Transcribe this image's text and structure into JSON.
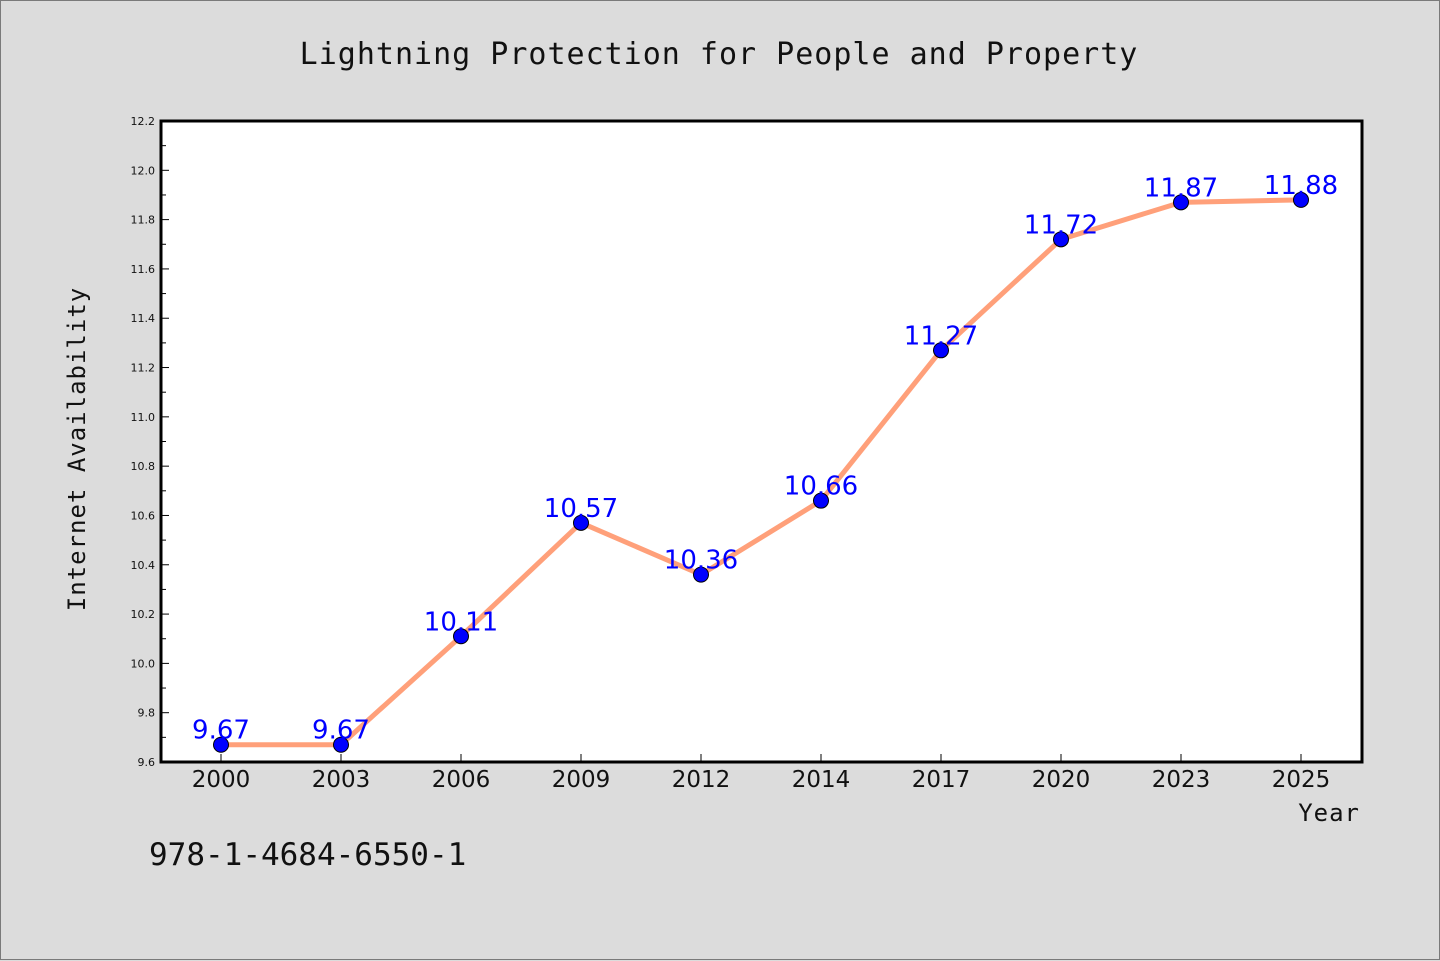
{
  "colors": {
    "background": "#dcdcdc",
    "plot_area": "#ffffff",
    "line": "#ffa07a",
    "marker": "#0000ff",
    "data_label": "#0000ff"
  },
  "identifier": "978-1-4684-6550-1",
  "chart_data": {
    "type": "line",
    "title": "Lightning Protection for People and Property",
    "xlabel": "Year",
    "ylabel": "Internet Availability",
    "categories": [
      "2000",
      "2003",
      "2006",
      "2009",
      "2012",
      "2014",
      "2017",
      "2020",
      "2023",
      "2025"
    ],
    "series": [
      {
        "values": [
          9.67,
          9.67,
          10.11,
          10.57,
          10.36,
          10.66,
          11.27,
          11.72,
          11.87,
          11.88
        ],
        "data_labels": [
          "9.67",
          "9.67",
          "10.11",
          "10.57",
          "10.36",
          "10.66",
          "11.27",
          "11.72",
          "11.87",
          "11.88"
        ]
      }
    ],
    "ylim": [
      9.6,
      12.2
    ],
    "yticks": [
      "9.6",
      "9.8",
      "10.0",
      "10.2",
      "10.4",
      "10.6",
      "10.8",
      "11.0",
      "11.2",
      "11.4",
      "11.6",
      "11.8",
      "12.0",
      "12.2"
    ],
    "grid": false,
    "legend": "none",
    "markers": true
  }
}
